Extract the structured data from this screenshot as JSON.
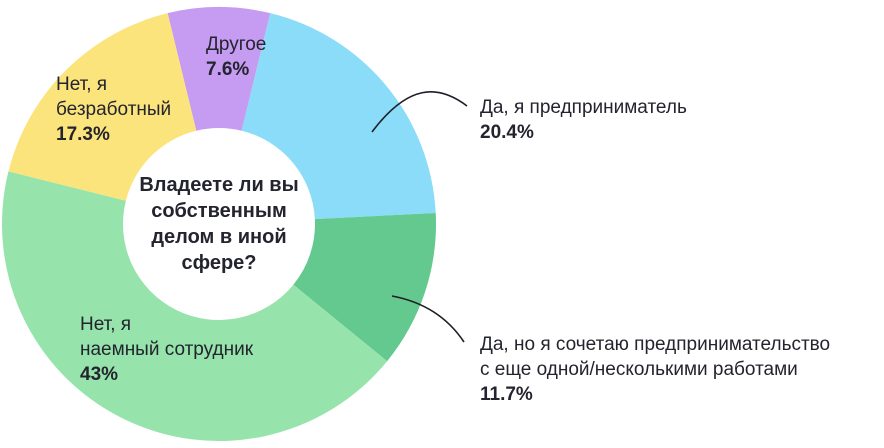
{
  "background": "#ffffff",
  "text_color": "#23242e",
  "chart_data": {
    "type": "pie",
    "donut": true,
    "title": "Владеете ли вы собственным делом в иной сфере?",
    "center_lines": [
      "Владеете ли вы",
      "собственным",
      "делом в иной",
      "сфере?"
    ],
    "start_angle_deg": -13.7,
    "legend_position": "labels-around-chart",
    "slices": [
      {
        "label": "Другое",
        "value": 7.6,
        "display": "7.6%",
        "color": "#c59cf1"
      },
      {
        "label": "Да, я предприниматель",
        "value": 20.4,
        "display": "20.4%",
        "color": "#8adcf8"
      },
      {
        "label": "Да, но я сочетаю предпринимательство с еще одной/несколькими работами",
        "value": 11.7,
        "display": "11.7%",
        "color": "#63c98e"
      },
      {
        "label": "Нет, я наемный сотрудник",
        "value": 43,
        "display": "43%",
        "color": "#96e3ab"
      },
      {
        "label": "Нет, я безработный",
        "value": 17.3,
        "display": "17.3%",
        "color": "#fbe47b"
      }
    ]
  },
  "labels": {
    "other": {
      "lines": [
        "Другое"
      ],
      "pct": "7.6%"
    },
    "unemployed": {
      "lines": [
        "Нет, я",
        "безработный"
      ],
      "pct": "17.3%"
    },
    "employee": {
      "lines": [
        "Нет, я",
        "наемный сотрудник"
      ],
      "pct": "43%"
    },
    "entrepreneur": {
      "lines": [
        "Да, я предприниматель"
      ],
      "pct": "20.4%"
    },
    "combine": {
      "lines": [
        "Да, но я сочетаю предпринимательство",
        "с еще одной/несколькими работами"
      ],
      "pct": "11.7%"
    }
  }
}
